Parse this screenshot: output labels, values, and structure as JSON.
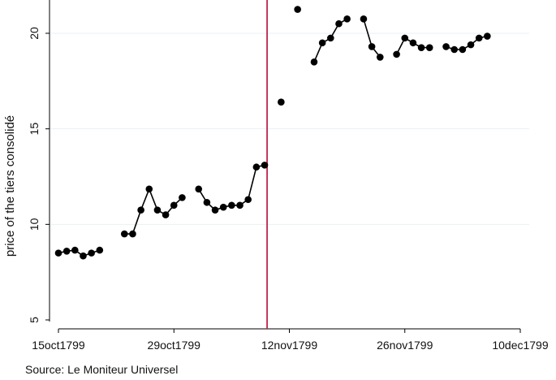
{
  "chart_data": {
    "type": "line",
    "ylabel": "price of the tiers consolidé",
    "note": "Source: Le Moniteur Universel",
    "ylim": [
      5,
      21.5
    ],
    "yticks": [
      5,
      10,
      15,
      20
    ],
    "xlim_days": [
      0,
      56
    ],
    "xticks": [
      {
        "day": 0,
        "label": "15oct1799"
      },
      {
        "day": 14,
        "label": "29oct1799"
      },
      {
        "day": 28,
        "label": "12nov1799"
      },
      {
        "day": 42,
        "label": "26nov1799"
      },
      {
        "day": 56,
        "label": "10dec1799"
      }
    ],
    "grid": true,
    "vline": {
      "day": 25.3,
      "color": "#c0234a"
    },
    "line_color": "#000000",
    "segments": [
      [
        [
          0,
          8.5
        ],
        [
          1,
          8.6
        ],
        [
          2,
          8.65
        ],
        [
          3,
          8.35
        ],
        [
          4,
          8.5
        ],
        [
          5,
          8.65
        ]
      ],
      [
        [
          8,
          9.5
        ],
        [
          9,
          9.5
        ],
        [
          10,
          10.75
        ],
        [
          11,
          11.85
        ],
        [
          12,
          10.75
        ],
        [
          13,
          10.5
        ],
        [
          14,
          11
        ],
        [
          15,
          11.4
        ]
      ],
      [
        [
          17,
          11.85
        ],
        [
          18,
          11.15
        ],
        [
          19,
          10.75
        ],
        [
          20,
          10.9
        ],
        [
          21,
          11
        ],
        [
          22,
          11
        ],
        [
          23,
          11.3
        ],
        [
          24,
          13
        ],
        [
          25,
          13.1
        ]
      ],
      [
        [
          27,
          16.4
        ]
      ],
      [
        [
          29,
          21.25
        ]
      ],
      [
        [
          31,
          18.5
        ],
        [
          32,
          19.5
        ],
        [
          33,
          19.75
        ],
        [
          34,
          20.5
        ],
        [
          35,
          20.75
        ]
      ],
      [
        [
          37,
          20.75
        ],
        [
          38,
          19.3
        ],
        [
          39,
          18.75
        ]
      ],
      [
        [
          41,
          18.9
        ],
        [
          42,
          19.75
        ],
        [
          43,
          19.5
        ],
        [
          44,
          19.25
        ],
        [
          45,
          19.25
        ]
      ],
      [
        [
          47,
          19.3
        ],
        [
          48,
          19.15
        ],
        [
          49,
          19.15
        ],
        [
          50,
          19.4
        ],
        [
          51,
          19.75
        ],
        [
          52,
          19.85
        ]
      ]
    ]
  }
}
